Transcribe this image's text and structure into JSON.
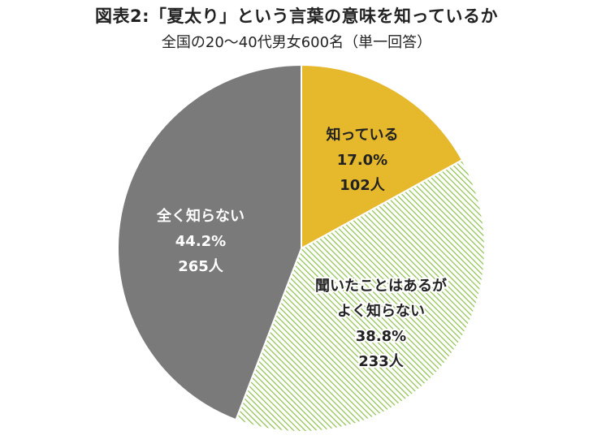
{
  "chart_data": {
    "type": "pie",
    "title": "図表2:「夏太り」という言葉の意味を知っているか",
    "subtitle": "全国の20～40代男女600名（単一回答）",
    "slices": [
      {
        "label": "知っている",
        "percent": "17.0%",
        "count": "102人",
        "value": 17.0,
        "color": "#e6b82c",
        "pattern": "solid"
      },
      {
        "label_lines": [
          "聞いたことはあるが",
          "よく知らない"
        ],
        "percent": "38.8%",
        "count": "233人",
        "value": 38.8,
        "color": "#8cc04a",
        "pattern": "hatch"
      },
      {
        "label": "全く知らない",
        "percent": "44.2%",
        "count": "265人",
        "value": 44.2,
        "color": "#7a7a7a",
        "pattern": "solid"
      }
    ],
    "legend": false
  }
}
